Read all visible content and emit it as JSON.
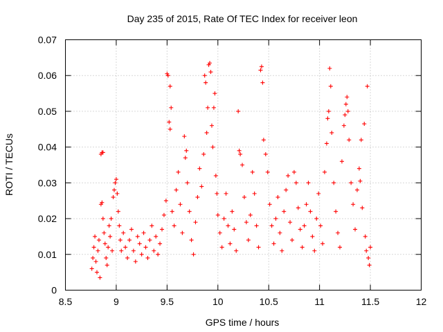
{
  "chart_data": {
    "type": "scatter",
    "title": "Day 235 of 2015, Rate Of TEC Index for receiver leon",
    "xlabel": "GPS time / hours",
    "ylabel": "ROTI / TECUs",
    "xlim": [
      8.5,
      12
    ],
    "ylim": [
      0,
      0.07
    ],
    "xticks": [
      "8.5",
      "9",
      "9.5",
      "10",
      "10.5",
      "11",
      "11.5",
      "12"
    ],
    "yticks": [
      "0",
      "0.01",
      "0.02",
      "0.03",
      "0.04",
      "0.05",
      "0.06",
      "0.07"
    ],
    "grid": true,
    "marker": "+",
    "color": "#ff0000",
    "series": [
      {
        "points": [
          [
            8.76,
            0.006
          ],
          [
            8.77,
            0.009
          ],
          [
            8.78,
            0.012
          ],
          [
            8.79,
            0.015
          ],
          [
            8.8,
            0.008
          ],
          [
            8.81,
            0.005
          ],
          [
            8.82,
            0.011
          ],
          [
            8.83,
            0.014
          ],
          [
            8.84,
            0.0035
          ],
          [
            8.85,
            0.038
          ],
          [
            8.86,
            0.0385
          ],
          [
            8.87,
            0.0385
          ],
          [
            8.85,
            0.024
          ],
          [
            8.86,
            0.0245
          ],
          [
            8.87,
            0.02
          ],
          [
            8.88,
            0.016
          ],
          [
            8.89,
            0.013
          ],
          [
            8.9,
            0.009
          ],
          [
            8.91,
            0.007
          ],
          [
            8.92,
            0.012
          ],
          [
            8.93,
            0.018
          ],
          [
            8.94,
            0.015
          ],
          [
            8.95,
            0.02
          ],
          [
            8.96,
            0.011
          ],
          [
            8.97,
            0.026
          ],
          [
            8.98,
            0.028
          ],
          [
            8.99,
            0.03
          ],
          [
            9.0,
            0.031
          ],
          [
            9.01,
            0.027
          ],
          [
            9.02,
            0.022
          ],
          [
            9.03,
            0.018
          ],
          [
            9.04,
            0.014
          ],
          [
            9.05,
            0.011
          ],
          [
            9.07,
            0.016
          ],
          [
            9.09,
            0.012
          ],
          [
            9.11,
            0.009
          ],
          [
            9.13,
            0.014
          ],
          [
            9.15,
            0.017
          ],
          [
            9.17,
            0.011
          ],
          [
            9.19,
            0.008
          ],
          [
            9.21,
            0.015
          ],
          [
            9.23,
            0.013
          ],
          [
            9.25,
            0.01
          ],
          [
            9.27,
            0.016
          ],
          [
            9.29,
            0.012
          ],
          [
            9.31,
            0.009
          ],
          [
            9.33,
            0.014
          ],
          [
            9.35,
            0.018
          ],
          [
            9.37,
            0.011
          ],
          [
            9.39,
            0.015
          ],
          [
            9.41,
            0.01
          ],
          [
            9.43,
            0.013
          ],
          [
            9.45,
            0.017
          ],
          [
            9.47,
            0.021
          ],
          [
            9.49,
            0.025
          ],
          [
            9.5,
            0.0605
          ],
          [
            9.51,
            0.06
          ],
          [
            9.52,
            0.047
          ],
          [
            9.53,
            0.045
          ],
          [
            9.53,
            0.057
          ],
          [
            9.54,
            0.051
          ],
          [
            9.55,
            0.022
          ],
          [
            9.57,
            0.018
          ],
          [
            9.59,
            0.028
          ],
          [
            9.61,
            0.033
          ],
          [
            9.63,
            0.024
          ],
          [
            9.65,
            0.016
          ],
          [
            9.67,
            0.043
          ],
          [
            9.68,
            0.037
          ],
          [
            9.69,
            0.039
          ],
          [
            9.7,
            0.03
          ],
          [
            9.72,
            0.022
          ],
          [
            9.74,
            0.014
          ],
          [
            9.76,
            0.01
          ],
          [
            9.78,
            0.019
          ],
          [
            9.8,
            0.026
          ],
          [
            9.82,
            0.034
          ],
          [
            9.84,
            0.029
          ],
          [
            9.86,
            0.038
          ],
          [
            9.87,
            0.06
          ],
          [
            9.88,
            0.058
          ],
          [
            9.89,
            0.044
          ],
          [
            9.9,
            0.051
          ],
          [
            9.91,
            0.063
          ],
          [
            9.92,
            0.0635
          ],
          [
            9.93,
            0.061
          ],
          [
            9.94,
            0.046
          ],
          [
            9.95,
            0.04
          ],
          [
            9.96,
            0.051
          ],
          [
            9.97,
            0.055
          ],
          [
            9.98,
            0.032
          ],
          [
            9.99,
            0.027
          ],
          [
            10.0,
            0.021
          ],
          [
            10.02,
            0.016
          ],
          [
            10.04,
            0.012
          ],
          [
            10.06,
            0.02
          ],
          [
            10.08,
            0.027
          ],
          [
            10.1,
            0.018
          ],
          [
            10.12,
            0.013
          ],
          [
            10.14,
            0.022
          ],
          [
            10.16,
            0.017
          ],
          [
            10.18,
            0.011
          ],
          [
            10.2,
            0.05
          ],
          [
            10.21,
            0.039
          ],
          [
            10.22,
            0.038
          ],
          [
            10.24,
            0.035
          ],
          [
            10.26,
            0.026
          ],
          [
            10.28,
            0.019
          ],
          [
            10.3,
            0.014
          ],
          [
            10.32,
            0.021
          ],
          [
            10.34,
            0.033
          ],
          [
            10.36,
            0.027
          ],
          [
            10.38,
            0.018
          ],
          [
            10.4,
            0.012
          ],
          [
            10.42,
            0.0615
          ],
          [
            10.43,
            0.0625
          ],
          [
            10.44,
            0.058
          ],
          [
            10.45,
            0.042
          ],
          [
            10.47,
            0.038
          ],
          [
            10.49,
            0.033
          ],
          [
            10.51,
            0.024
          ],
          [
            10.53,
            0.018
          ],
          [
            10.55,
            0.013
          ],
          [
            10.57,
            0.02
          ],
          [
            10.59,
            0.026
          ],
          [
            10.61,
            0.016
          ],
          [
            10.63,
            0.011
          ],
          [
            10.65,
            0.022
          ],
          [
            10.67,
            0.028
          ],
          [
            10.69,
            0.032
          ],
          [
            10.71,
            0.019
          ],
          [
            10.73,
            0.014
          ],
          [
            10.75,
            0.033
          ],
          [
            10.77,
            0.03
          ],
          [
            10.79,
            0.023
          ],
          [
            10.81,
            0.017
          ],
          [
            10.83,
            0.012
          ],
          [
            10.85,
            0.018
          ],
          [
            10.87,
            0.024
          ],
          [
            10.89,
            0.03
          ],
          [
            10.91,
            0.022
          ],
          [
            10.93,
            0.015
          ],
          [
            10.95,
            0.011
          ],
          [
            10.97,
            0.02
          ],
          [
            10.99,
            0.027
          ],
          [
            11.01,
            0.018
          ],
          [
            11.03,
            0.013
          ],
          [
            11.05,
            0.033
          ],
          [
            11.07,
            0.041
          ],
          [
            11.08,
            0.048
          ],
          [
            11.09,
            0.05
          ],
          [
            11.1,
            0.062
          ],
          [
            11.11,
            0.057
          ],
          [
            11.12,
            0.044
          ],
          [
            11.14,
            0.03
          ],
          [
            11.16,
            0.022
          ],
          [
            11.18,
            0.016
          ],
          [
            11.2,
            0.012
          ],
          [
            11.22,
            0.036
          ],
          [
            11.24,
            0.046
          ],
          [
            11.25,
            0.049
          ],
          [
            11.26,
            0.052
          ],
          [
            11.27,
            0.054
          ],
          [
            11.28,
            0.05
          ],
          [
            11.29,
            0.042
          ],
          [
            11.31,
            0.03
          ],
          [
            11.33,
            0.024
          ],
          [
            11.35,
            0.017
          ],
          [
            11.37,
            0.028
          ],
          [
            11.39,
            0.034
          ],
          [
            11.4,
            0.0305
          ],
          [
            11.41,
            0.042
          ],
          [
            11.42,
            0.023
          ],
          [
            11.44,
            0.0465
          ],
          [
            11.45,
            0.015
          ],
          [
            11.46,
            0.011
          ],
          [
            11.47,
            0.057
          ],
          [
            11.48,
            0.009
          ],
          [
            11.49,
            0.007
          ],
          [
            11.5,
            0.012
          ]
        ]
      }
    ]
  }
}
